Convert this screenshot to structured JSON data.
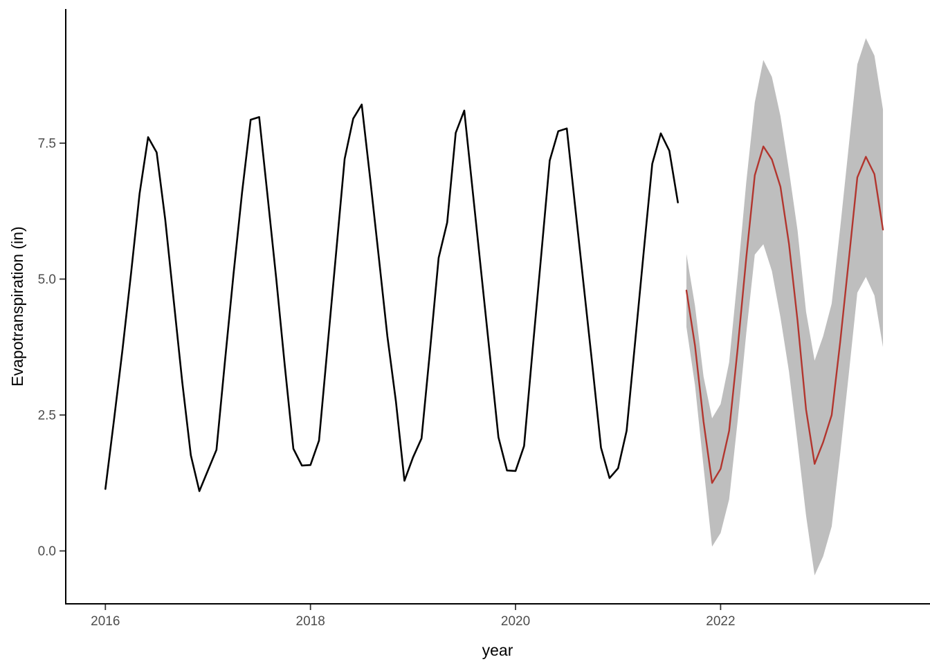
{
  "chart_data": {
    "type": "line",
    "title": "",
    "xlabel": "year",
    "ylabel": "Evapotranspiration (in)",
    "grid": "off",
    "legend": "none",
    "background_color": "#FFFFFF",
    "colors": {
      "observed_line": "#000000",
      "forecast_line": "#B2352E",
      "interval_fill": "#BEBEBE",
      "axis_line": "#000000",
      "tick_text": "#4D4D4D",
      "title_text": "#000000"
    },
    "x_axis": {
      "label": "year",
      "range": [
        2015.6133,
        2024.0421
      ],
      "ticks": [
        2016,
        2018,
        2020,
        2022
      ],
      "tick_labels": [
        "2016",
        "2018",
        "2020",
        "2022"
      ]
    },
    "y_axis": {
      "label": "Evapotranspiration (in)",
      "range": [
        -0.973,
        9.955
      ],
      "ticks": [
        0,
        2.5,
        5,
        7.5
      ],
      "tick_labels": [
        "0.0",
        "2.5",
        "5.0",
        "7.5"
      ]
    },
    "series": [
      {
        "name": "observed",
        "role": "history",
        "interval": "monthly",
        "x_start": 2016.0,
        "values": [
          1.14,
          2.4,
          3.7,
          5.1,
          6.57,
          7.61,
          7.33,
          6.1,
          4.6,
          3.1,
          1.76,
          1.1,
          1.48,
          1.86,
          3.5,
          5.1,
          6.6,
          7.93,
          7.98,
          6.5,
          5.0,
          3.4,
          1.88,
          1.57,
          1.58,
          2.03,
          3.76,
          5.48,
          7.21,
          7.95,
          8.21,
          6.83,
          5.4,
          3.95,
          2.75,
          1.29,
          1.72,
          2.07,
          3.7,
          5.39,
          6.04,
          7.69,
          8.1,
          6.6,
          5.1,
          3.6,
          2.09,
          1.48,
          1.47,
          1.93,
          3.7,
          5.43,
          7.18,
          7.72,
          7.77,
          6.3,
          4.85,
          3.4,
          1.9,
          1.34,
          1.52,
          2.21,
          3.85,
          5.5,
          7.12,
          7.68,
          7.36,
          6.41
        ]
      },
      {
        "name": "forecast",
        "role": "point-forecast",
        "interval": "monthly",
        "x_start": 2021.6667,
        "values": [
          4.79,
          3.78,
          2.38,
          1.25,
          1.51,
          2.21,
          3.73,
          5.39,
          6.91,
          7.44,
          7.2,
          6.7,
          5.65,
          4.24,
          2.6,
          1.6,
          2.0,
          2.5,
          3.85,
          5.35,
          6.87,
          7.25,
          6.93,
          5.91
        ]
      },
      {
        "name": "forecast_interval",
        "role": "confidence-band",
        "interval": "monthly",
        "x_start": 2021.6667,
        "lower": [
          4.12,
          3.05,
          1.55,
          0.08,
          0.33,
          0.95,
          2.4,
          4.0,
          5.45,
          5.64,
          5.15,
          4.3,
          3.3,
          2.0,
          0.65,
          -0.45,
          -0.1,
          0.45,
          1.8,
          3.25,
          4.75,
          5.04,
          4.7,
          3.75
        ],
        "upper": [
          5.46,
          4.51,
          3.21,
          2.44,
          2.7,
          3.47,
          5.06,
          6.78,
          8.25,
          9.03,
          8.72,
          8.0,
          7.0,
          5.9,
          4.4,
          3.5,
          3.95,
          4.55,
          5.95,
          7.45,
          8.95,
          9.43,
          9.11,
          8.12
        ]
      }
    ]
  }
}
